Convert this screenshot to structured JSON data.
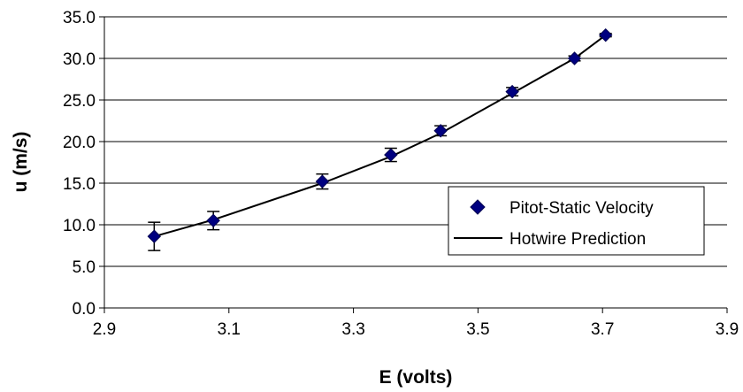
{
  "chart_data": {
    "type": "scatter",
    "title": "",
    "xlabel": "E (volts)",
    "ylabel": "u (m/s)",
    "xlim": [
      2.9,
      3.9
    ],
    "ylim": [
      0.0,
      35.0
    ],
    "xticks": [
      "2.9",
      "3.1",
      "3.3",
      "3.5",
      "3.7",
      "3.9"
    ],
    "yticks": [
      "0.0",
      "5.0",
      "10.0",
      "15.0",
      "20.0",
      "25.0",
      "30.0",
      "35.0"
    ],
    "grid": "horizontal major gridlines",
    "legend_position": "right",
    "series": [
      {
        "name": "Pitot-Static Velocity",
        "kind": "markers",
        "marker": "diamond",
        "color": "#000080",
        "x": [
          2.98,
          3.075,
          3.25,
          3.36,
          3.44,
          3.555,
          3.655,
          3.705
        ],
        "y": [
          8.6,
          10.5,
          15.2,
          18.4,
          21.3,
          26.0,
          30.0,
          32.8
        ],
        "error": [
          1.7,
          1.1,
          0.9,
          0.8,
          0.6,
          0.5,
          0.3,
          0.2
        ]
      },
      {
        "name": "Hotwire Prediction",
        "kind": "line",
        "color": "#000000",
        "x": [
          2.98,
          3.075,
          3.25,
          3.36,
          3.44,
          3.555,
          3.655,
          3.705
        ],
        "y": [
          8.6,
          10.6,
          15.0,
          18.2,
          21.0,
          25.8,
          30.0,
          32.8
        ]
      }
    ]
  }
}
